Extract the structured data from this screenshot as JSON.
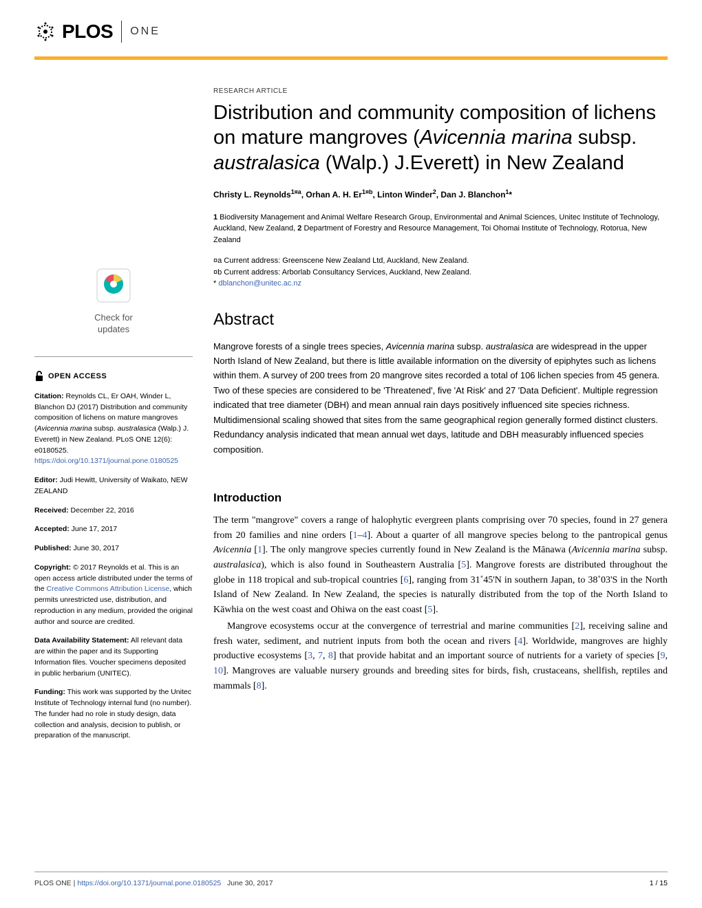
{
  "header": {
    "logo_text": "PLOS",
    "journal": "ONE"
  },
  "colors": {
    "accent_orange": "#f8af2d",
    "link_blue": "#3c63af",
    "crossmark_teal": "#00b5ad",
    "crossmark_red": "#ef4a5d",
    "crossmark_yellow": "#f8c742"
  },
  "sidebar": {
    "check_updates_line1": "Check for",
    "check_updates_line2": "updates",
    "open_access": "OPEN ACCESS",
    "citation": {
      "label": "Citation:",
      "text": " Reynolds CL, Er OAH, Winder L, Blanchon DJ (2017) Distribution and community composition of lichens on mature mangroves (",
      "italic1": "Avicennia marina",
      "text2": " subsp. ",
      "italic2": "australasica",
      "text3": " (Walp.) J. Everett) in New Zealand. PLoS ONE 12(6): e0180525. ",
      "link": "https://doi.org/10.1371/journal.pone.0180525"
    },
    "editor": {
      "label": "Editor:",
      "text": " Judi Hewitt, University of Waikato, NEW ZEALAND"
    },
    "received": {
      "label": "Received:",
      "text": " December 22, 2016"
    },
    "accepted": {
      "label": "Accepted:",
      "text": " June 17, 2017"
    },
    "published": {
      "label": "Published:",
      "text": " June 30, 2017"
    },
    "copyright": {
      "label": "Copyright:",
      "text1": " © 2017 Reynolds et al. This is an open access article distributed under the terms of the ",
      "link": "Creative Commons Attribution License",
      "text2": ", which permits unrestricted use, distribution, and reproduction in any medium, provided the original author and source are credited."
    },
    "data": {
      "label": "Data Availability Statement:",
      "text": " All relevant data are within the paper and its Supporting Information files. Voucher specimens deposited in public herbarium (UNITEC)."
    },
    "funding": {
      "label": "Funding:",
      "text": " This work was supported by the Unitec Institute of Technology internal fund (no number). The funder had no role in study design, data collection and analysis, decision to publish, or preparation of the manuscript."
    }
  },
  "article": {
    "type": "RESEARCH ARTICLE",
    "title_part1": "Distribution and community composition of lichens on mature mangroves (",
    "title_italic1": "Avicennia marina",
    "title_part2": " subsp. ",
    "title_italic2": "australasica",
    "title_part3": " (Walp.) J.Everett) in New Zealand",
    "authors_html": "Christy L. Reynolds<sup>1¤a</sup>, Orhan A. H. Er<sup>1¤b</sup>, Linton Winder<sup>2</sup>, Dan J. Blanchon<sup>1</sup>*",
    "affiliations_html": "<strong>1</strong> Biodiversity Management and Animal Welfare Research Group, Environmental and Animal Sciences, Unitec Institute of Technology, Auckland, New Zealand, <strong>2</strong> Department of Forestry and Resource Management, Toi Ohomai Institute of Technology, Rotorua, New Zealand",
    "address_a": "¤a  Current address: Greenscene New Zealand Ltd, Auckland, New Zealand.",
    "address_b": "¤b  Current address: Arborlab Consultancy Services, Auckland, New Zealand.",
    "email_prefix": "* ",
    "email": "dblanchon@unitec.ac.nz",
    "abstract_heading": "Abstract",
    "abstract_text_html": "Mangrove forests of a single trees species, <em>Avicennia marina</em> subsp. <em>australasica</em> are widespread in the upper North Island of New Zealand, but there is little available information on the diversity of epiphytes such as lichens within them. A survey of 200 trees from 20 mangrove sites recorded a total of 106 lichen species from 45 genera. Two of these species are considered to be 'Threatened', five 'At Risk' and 27 'Data Deficient'. Multiple regression indicated that tree diameter (DBH) and mean annual rain days positively influenced site species richness. Multidimensional scaling showed that sites from the same geographical region generally formed distinct clusters. Redundancy analysis indicated that mean annual wet days, latitude and DBH measurably influenced species composition.",
    "intro_heading": "Introduction",
    "intro_p1_html": "The term \"mangrove\" covers a range of halophytic evergreen plants comprising over 70 species, found in 27 genera from 20 families and nine orders [<span class='ref'>1</span>–<span class='ref'>4</span>]. About a quarter of all mangrove species belong to the pantropical genus <em>Avicennia</em> [<span class='ref'>1</span>]. The only mangrove species currently found in New Zealand is the Mānawa (<em>Avicennia marina</em> subsp. <em>australasica</em>), which is also found in Southeastern Australia [<span class='ref'>5</span>]. Mangrove forests are distributed throughout the globe in 118 tropical and sub-tropical countries [<span class='ref'>6</span>], ranging from 31˚45'N in southern Japan, to 38˚03'S in the North Island of New Zealand. In New Zealand, the species is naturally distributed from the top of the North Island to Kāwhia on the west coast and Ohiwa on the east coast [<span class='ref'>5</span>].",
    "intro_p2_html": "Mangrove ecosystems occur at the convergence of terrestrial and marine communities [<span class='ref'>2</span>], receiving saline and fresh water, sediment, and nutrient inputs from both the ocean and rivers [<span class='ref'>4</span>]. Worldwide, mangroves are highly productive ecosystems [<span class='ref'>3</span>, <span class='ref'>7</span>, <span class='ref'>8</span>] that provide habitat and an important source of nutrients for a variety of species [<span class='ref'>9</span>, <span class='ref'>10</span>]. Mangroves are valuable nursery grounds and breeding sites for birds, fish, crustaceans, shellfish, reptiles and mammals [<span class='ref'>8</span>]."
  },
  "footer": {
    "journal": "PLOS ONE | ",
    "doi_link": "https://doi.org/10.1371/journal.pone.0180525",
    "date": "June 30, 2017",
    "page": "1 / 15"
  }
}
